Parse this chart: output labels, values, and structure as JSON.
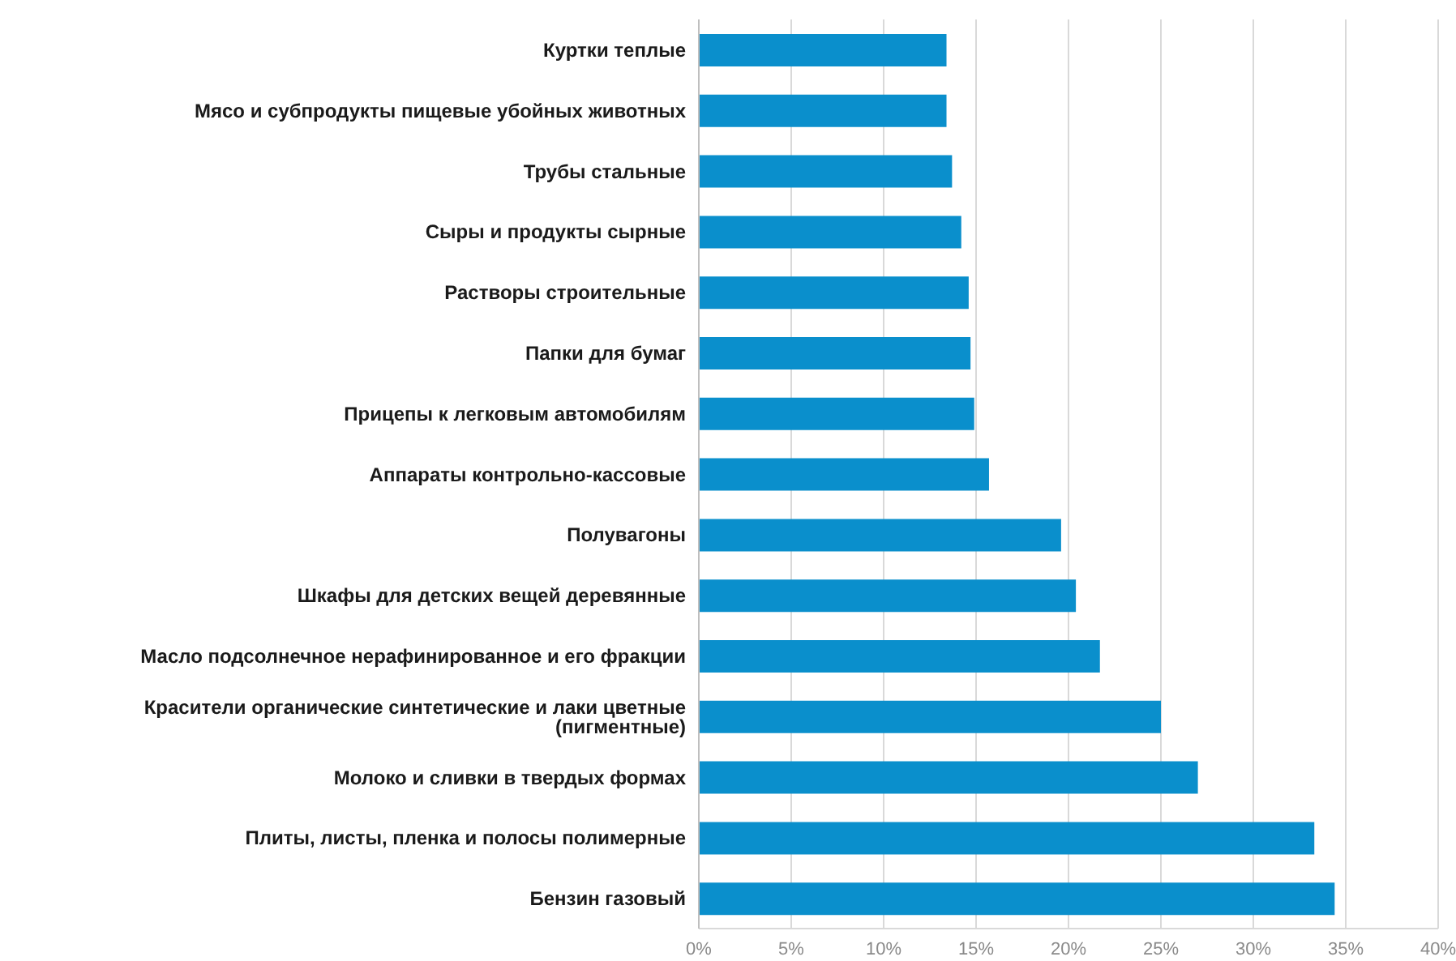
{
  "chart_data": {
    "type": "bar",
    "orientation": "horizontal",
    "categories": [
      "Куртки теплые",
      "Мясо и субпродукты пищевые убойных животных",
      "Трубы стальные",
      "Сыры и продукты сырные",
      "Растворы строительные",
      "Папки для бумаг",
      "Прицепы к легковым автомобилям",
      "Аппараты контрольно-кассовые",
      "Полувагоны",
      "Шкафы для детских вещей деревянные",
      "Масло подсолнечное нерафинированное и его фракции",
      "Красители органические синтетические и лаки цветные (пигментные)",
      "Молоко и сливки в твердых формах",
      "Плиты, листы, пленка и полосы полимерные",
      "Бензин газовый"
    ],
    "values": [
      13.4,
      13.4,
      13.7,
      14.2,
      14.6,
      14.7,
      14.9,
      15.7,
      19.6,
      20.4,
      21.7,
      25.0,
      27.0,
      33.3,
      34.4
    ],
    "color": "#0a8fcc",
    "xlim": [
      0,
      40
    ],
    "xticks": [
      {
        "value": 0,
        "label": "0%"
      },
      {
        "value": 5,
        "label": "5%"
      },
      {
        "value": 10,
        "label": "10%"
      },
      {
        "value": 15,
        "label": "15%"
      },
      {
        "value": 20,
        "label": "20%"
      },
      {
        "value": 25,
        "label": "25%"
      },
      {
        "value": 30,
        "label": "30%"
      },
      {
        "value": 35,
        "label": "35%"
      },
      {
        "value": 40,
        "label": "40%"
      }
    ],
    "grid": "x",
    "legend": false
  }
}
